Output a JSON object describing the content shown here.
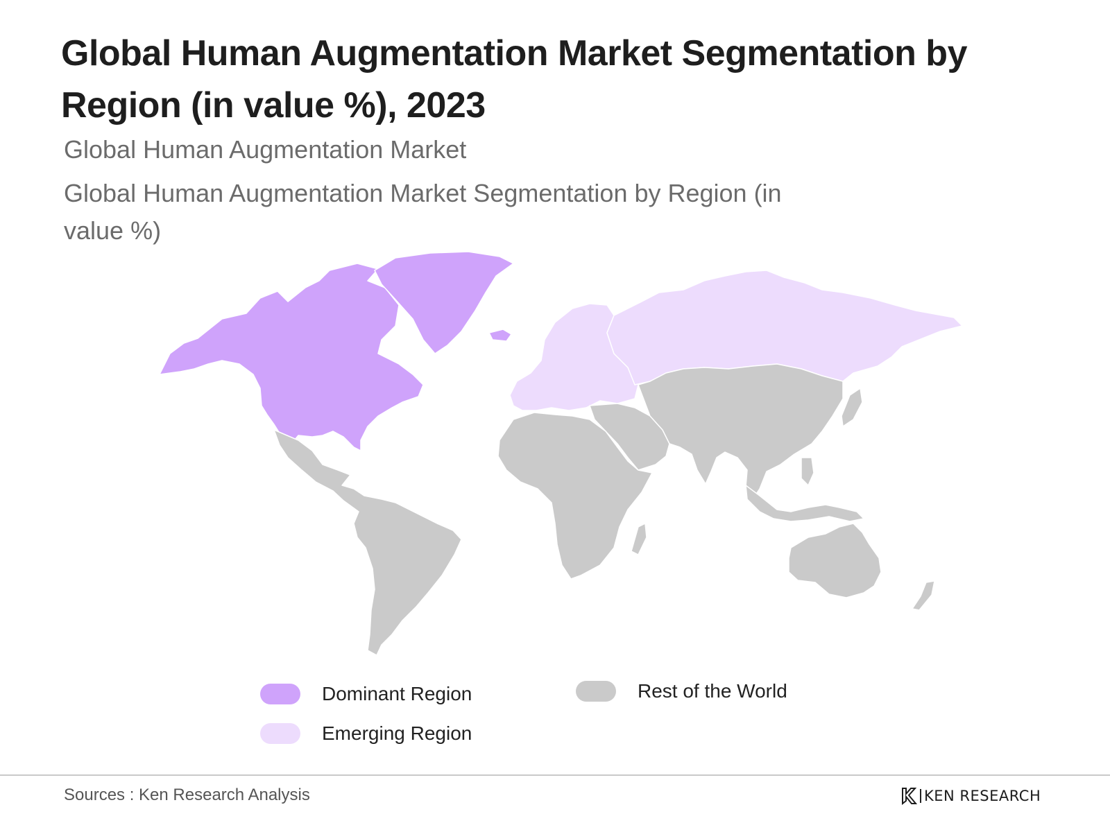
{
  "title": "Global Human Augmentation Market Segmentation by Region (in value %), 2023",
  "subtitle_1": "Global Human Augmentation Market",
  "subtitle_2": "Global Human Augmentation Market Segmentation by Region (in value %)",
  "colors": {
    "dominant": "#cfa3fb",
    "emerging": "#eddcfd",
    "rest": "#cacaca"
  },
  "regions": [
    {
      "name": "North America",
      "category": "dominant"
    },
    {
      "name": "Greenland",
      "category": "dominant"
    },
    {
      "name": "Europe",
      "category": "emerging"
    },
    {
      "name": "Russia",
      "category": "emerging"
    },
    {
      "name": "Latin America",
      "category": "rest"
    },
    {
      "name": "Africa",
      "category": "rest"
    },
    {
      "name": "Middle East",
      "category": "rest"
    },
    {
      "name": "Asia",
      "category": "rest"
    },
    {
      "name": "Oceania",
      "category": "rest"
    }
  ],
  "legend": {
    "dominant": "Dominant Region",
    "emerging": "Emerging Region",
    "rest": "Rest of the World"
  },
  "source": "Sources : Ken Research Analysis",
  "brand": "KEN RESEARCH"
}
